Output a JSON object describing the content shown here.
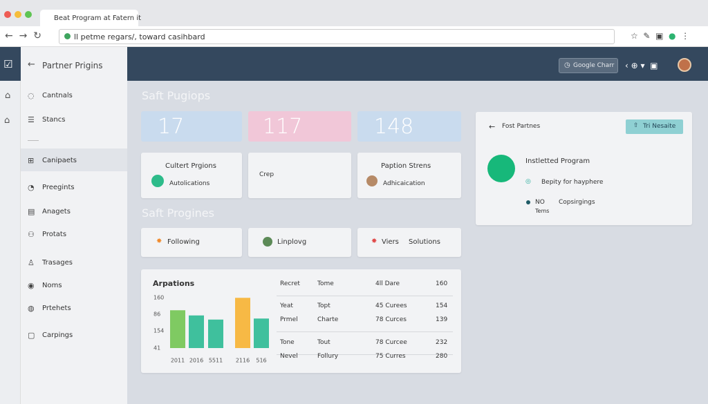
{
  "browser": {
    "tab_title": "Beat Program at Fatern it",
    "url": "ll petme regars/, toward casihbard"
  },
  "sidebar": {
    "header": "Partner Prigins",
    "items": [
      "Cantnals",
      "Stancs",
      "Canipaets",
      "Preegints",
      "Anagets",
      "Protats",
      "Trasages",
      "Noms",
      "Prtehets",
      "Carpings"
    ]
  },
  "topbar": {
    "button": "Google Charr"
  },
  "section1": {
    "title": "Saft Pugiops",
    "stats": [
      17,
      117,
      148
    ],
    "cards": [
      {
        "title": "Cultert Prgions",
        "label": "Autolications"
      },
      {
        "label": "Crep"
      },
      {
        "title": "Paption Strens",
        "label": "Adhicaication"
      }
    ]
  },
  "section2": {
    "title": "Saft Progines",
    "cards": [
      "Following",
      "Linplovg",
      "Viers",
      "Solutions"
    ]
  },
  "chart_data": {
    "type": "bar",
    "title": "Arpations",
    "y_labels": [
      "160",
      "86",
      "154",
      "41"
    ],
    "categories": [
      "2011",
      "2016",
      "5511",
      "2116",
      "516"
    ],
    "values": [
      73,
      63,
      55,
      97,
      57
    ],
    "colors": [
      "#7fca62",
      "#3fc09d",
      "#3fc09d",
      "#f7b945",
      "#3fc09d"
    ],
    "ylim": [
      0,
      100
    ]
  },
  "table": {
    "rows": [
      [
        "Recret",
        "Tome",
        "4ll Dare",
        160
      ],
      [
        "Yeat",
        "Topt",
        "45 Curees",
        154
      ],
      [
        "Prmel",
        "Charte",
        "78 Curces",
        139
      ],
      [
        "Tone",
        "Tout",
        "78 Curcee",
        232
      ],
      [
        "Nevel",
        "Follury",
        "75 Curres",
        280
      ]
    ]
  },
  "panel": {
    "back": "Fost Partnes",
    "button": "Tri Nesaite",
    "title": "Instletted Program",
    "line": "Bepity for hayphere",
    "status": "NO",
    "status_sub": "Tems",
    "detail": "Copsirgings"
  }
}
